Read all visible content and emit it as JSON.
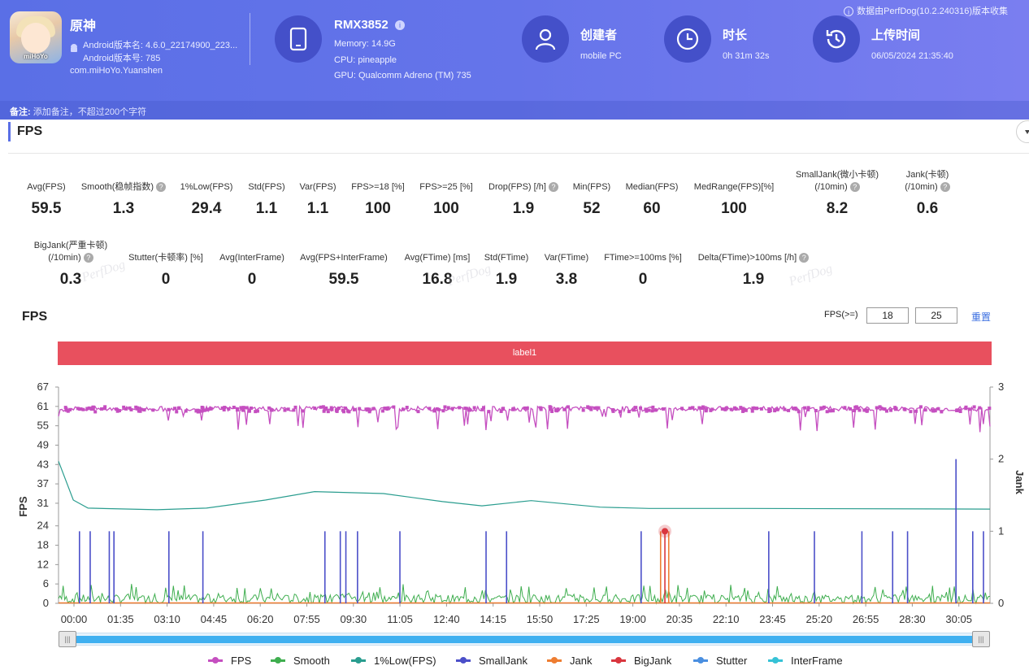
{
  "app": {
    "name": "原神",
    "version_name": "Android版本名: 4.6.0_22174900_223...",
    "version_code": "Android版本号: 785",
    "package": "com.miHoYo.Yuanshen",
    "icon_logo_text": "miHoYo"
  },
  "device": {
    "model": "RMX3852",
    "memory": "Memory: 14.9G",
    "cpu": "CPU: pineapple",
    "gpu": "GPU: Qualcomm Adreno (TM) 735"
  },
  "creator": {
    "title": "创建者",
    "value": "mobile PC"
  },
  "duration": {
    "title": "时长",
    "value": "0h 31m 32s"
  },
  "upload": {
    "title": "上传时间",
    "value": "06/05/2024 21:35:40"
  },
  "source_note": "数据由PerfDog(10.2.240316)版本收集",
  "remark": {
    "label": "备注:",
    "placeholder": "添加备注，不超过200个字符"
  },
  "section_title": "FPS",
  "stats_row1": [
    {
      "label": "Avg(FPS)",
      "value": "59.5",
      "help": false
    },
    {
      "label": "Smooth(稳帧指数)",
      "value": "1.3",
      "help": true
    },
    {
      "label": "1%Low(FPS)",
      "value": "29.4",
      "help": false
    },
    {
      "label": "Std(FPS)",
      "value": "1.1",
      "help": false
    },
    {
      "label": "Var(FPS)",
      "value": "1.1",
      "help": false
    },
    {
      "label": "FPS>=18 [%]",
      "value": "100",
      "help": false
    },
    {
      "label": "FPS>=25 [%]",
      "value": "100",
      "help": false
    },
    {
      "label": "Drop(FPS) [/h]",
      "value": "1.9",
      "help": true
    },
    {
      "label": "Min(FPS)",
      "value": "52",
      "help": false
    },
    {
      "label": "Median(FPS)",
      "value": "60",
      "help": false
    },
    {
      "label": "MedRange(FPS)[%]",
      "value": "100",
      "help": false
    },
    {
      "label": "SmallJank(微小卡顿)",
      "label2": "(/10min)",
      "value": "8.2",
      "help": true
    },
    {
      "label": "Jank(卡顿)",
      "label2": "(/10min)",
      "value": "0.6",
      "help": true
    }
  ],
  "stats_row2": [
    {
      "label": "BigJank(严重卡顿)",
      "label2": "(/10min)",
      "value": "0.3",
      "help": true
    },
    {
      "label": "Stutter(卡顿率) [%]",
      "value": "0",
      "help": false
    },
    {
      "label": "Avg(InterFrame)",
      "value": "0",
      "help": false
    },
    {
      "label": "Avg(FPS+InterFrame)",
      "value": "59.5",
      "help": false
    },
    {
      "label": "Avg(FTime) [ms]",
      "value": "16.8",
      "help": false
    },
    {
      "label": "Std(FTime)",
      "value": "1.9",
      "help": false
    },
    {
      "label": "Var(FTime)",
      "value": "3.8",
      "help": false
    },
    {
      "label": "FTime>=100ms [%]",
      "value": "0",
      "help": false
    },
    {
      "label": "Delta(FTime)>100ms [/h]",
      "value": "1.9",
      "help": true
    }
  ],
  "watermark": "PerfDog",
  "chart_title": "FPS",
  "fps_threshold": {
    "label": "FPS(>=)",
    "value1": "18",
    "value2": "25",
    "reset_label": "重置"
  },
  "label_bar": "label1",
  "chart_data": {
    "type": "line",
    "title": "FPS",
    "ylabel": "FPS",
    "y2label": "Jank",
    "ylim": [
      0,
      67
    ],
    "y2lim": [
      0,
      3
    ],
    "yticks": [
      "67",
      "61",
      "55",
      "49",
      "43",
      "37",
      "31",
      "24",
      "18",
      "12",
      "6",
      "0"
    ],
    "y2ticks": [
      "3",
      "2",
      "1",
      "0"
    ],
    "xticks": [
      "00:00",
      "01:35",
      "03:10",
      "04:45",
      "06:20",
      "07:55",
      "09:30",
      "11:05",
      "12:40",
      "14:15",
      "15:50",
      "17:25",
      "19:00",
      "20:35",
      "22:10",
      "23:45",
      "25:20",
      "26:55",
      "28:30",
      "30:05"
    ],
    "duration_seconds": 1892,
    "series": [
      {
        "name": "FPS",
        "color": "#c54fc0",
        "description": "mostly 58-61 fps with dips to ~52"
      },
      {
        "name": "Smooth",
        "color": "#3fae4f"
      },
      {
        "name": "1%Low(FPS)",
        "color": "#2a9d8f",
        "points": [
          [
            0,
            44
          ],
          [
            30,
            32
          ],
          [
            60,
            29.5
          ],
          [
            200,
            29
          ],
          [
            300,
            29.5
          ],
          [
            420,
            32
          ],
          [
            520,
            34.6
          ],
          [
            660,
            34
          ],
          [
            780,
            31.5
          ],
          [
            860,
            30.2
          ],
          [
            960,
            31.8
          ],
          [
            1100,
            29.8
          ],
          [
            1200,
            29.4
          ],
          [
            1400,
            29.4
          ],
          [
            1892,
            29.2
          ]
        ]
      },
      {
        "name": "SmallJank",
        "color": "#4b4fc9",
        "spikes_seconds": [
          45,
          68,
          109,
          119,
          237,
          310,
          572,
          605,
          617,
          642,
          733,
          918,
          962,
          1251,
          1525,
          1623,
          1725,
          1791,
          1823,
          1927,
          1963,
          1986
        ],
        "spike_values": [
          1,
          1,
          1,
          1,
          1,
          1,
          1,
          1,
          1,
          1,
          1,
          1,
          1,
          1,
          1,
          1,
          1,
          1,
          1,
          2,
          1,
          1
        ]
      },
      {
        "name": "Jank",
        "color": "#ee7d31",
        "spikes_seconds": [
          1298,
          1305
        ],
        "spike_values": [
          1,
          1
        ]
      },
      {
        "name": "BigJank",
        "color": "#d9363e",
        "spikes_seconds": [
          1302
        ],
        "spike_values": [
          1
        ]
      },
      {
        "name": "Stutter",
        "color": "#4a8fe0"
      },
      {
        "name": "InterFrame",
        "color": "#36c2d6"
      }
    ]
  },
  "legend": [
    {
      "name": "FPS",
      "color": "#c54fc0"
    },
    {
      "name": "Smooth",
      "color": "#3fae4f"
    },
    {
      "name": "1%Low(FPS)",
      "color": "#2a9d8f"
    },
    {
      "name": "SmallJank",
      "color": "#4b4fc9"
    },
    {
      "name": "Jank",
      "color": "#ee7d31"
    },
    {
      "name": "BigJank",
      "color": "#d9363e"
    },
    {
      "name": "Stutter",
      "color": "#4a8fe0"
    },
    {
      "name": "InterFrame",
      "color": "#36c2d6"
    }
  ],
  "slider_handle_glyph": "|||"
}
